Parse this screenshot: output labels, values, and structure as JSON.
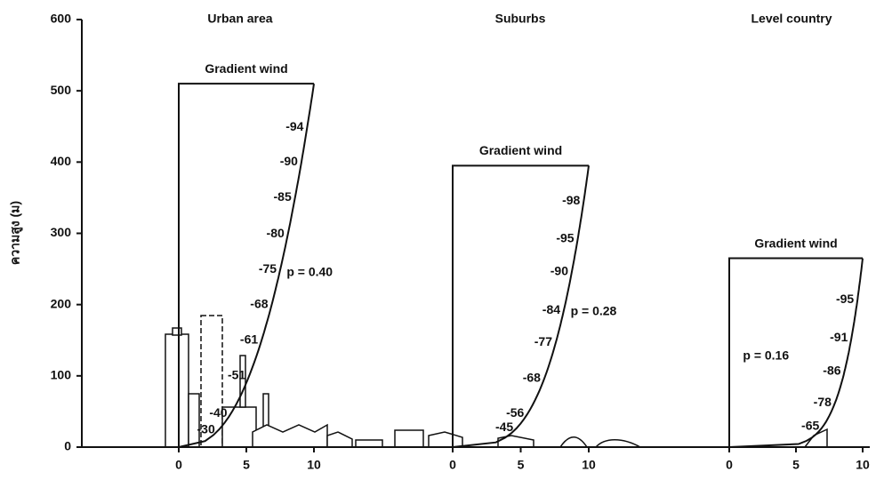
{
  "chart_data": {
    "type": "wind-profile",
    "ylabel": "ความสูง (ม)",
    "ylim": [
      0,
      600
    ],
    "yticks": [
      0,
      100,
      200,
      300,
      400,
      500,
      600
    ],
    "panels": [
      {
        "title": "Urban area",
        "xlim": [
          0,
          10
        ],
        "xticks": [
          0,
          5,
          10
        ],
        "gradient_label": "Gradient wind",
        "gradient_height": 510,
        "p": 0.4,
        "p_label": "p = 0.40",
        "profile_labels": [
          {
            "height": 449,
            "label": "-94"
          },
          {
            "height": 400,
            "label": "-90"
          },
          {
            "height": 350,
            "label": "-85"
          },
          {
            "height": 299,
            "label": "-80"
          },
          {
            "height": 249,
            "label": "-75"
          },
          {
            "height": 200,
            "label": "-68"
          },
          {
            "height": 150,
            "label": "-61"
          },
          {
            "height": 100,
            "label": "-51"
          },
          {
            "height": 47,
            "label": "-40"
          },
          {
            "height": 24,
            "label": "-30"
          }
        ]
      },
      {
        "title": "Suburbs",
        "xlim": [
          0,
          10
        ],
        "xticks": [
          0,
          5,
          10
        ],
        "gradient_label": "Gradient wind",
        "gradient_height": 395,
        "p": 0.28,
        "p_label": "p = 0.28",
        "profile_labels": [
          {
            "height": 345,
            "label": "-98"
          },
          {
            "height": 292,
            "label": "-95"
          },
          {
            "height": 246,
            "label": "-90"
          },
          {
            "height": 192,
            "label": "-84"
          },
          {
            "height": 147,
            "label": "-77"
          },
          {
            "height": 96,
            "label": "-68"
          },
          {
            "height": 47,
            "label": "-56"
          },
          {
            "height": 27,
            "label": "-45"
          }
        ]
      },
      {
        "title": "Level country",
        "xlim": [
          0,
          10
        ],
        "xticks": [
          0,
          5,
          10
        ],
        "gradient_label": "Gradient wind",
        "gradient_height": 265,
        "p": 0.16,
        "p_label": "p = 0.16",
        "profile_labels": [
          {
            "height": 207,
            "label": "-95"
          },
          {
            "height": 153,
            "label": "-91"
          },
          {
            "height": 106,
            "label": "-86"
          },
          {
            "height": 62,
            "label": "-78"
          },
          {
            "height": 29,
            "label": "-65"
          }
        ]
      }
    ]
  }
}
